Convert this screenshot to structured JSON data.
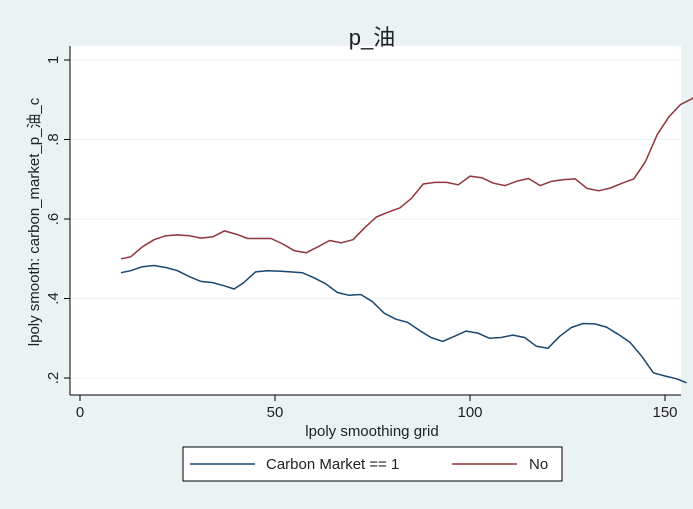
{
  "chart_data": {
    "type": "line",
    "title": "p_油",
    "xlabel": "lpoly smoothing grid",
    "ylabel": "lpoly smooth: carbon_market_p_油_c",
    "xlim": [
      0,
      150
    ],
    "ylim": [
      0.2,
      1.0
    ],
    "x_ticks": [
      0,
      50,
      100,
      150
    ],
    "x_tick_labels": [
      "0",
      "50",
      "100",
      "150"
    ],
    "y_ticks": [
      0.2,
      0.4,
      0.6,
      0.8,
      1.0
    ],
    "y_tick_labels": [
      ".2",
      ".4",
      ".6",
      ".8",
      "1"
    ],
    "grid": true,
    "legend_position": "bottom",
    "series": [
      {
        "name": "Carbon Market == 1",
        "color": "#1a476f",
        "points": [
          [
            10.5,
            0.465
          ],
          [
            13,
            0.47
          ],
          [
            16,
            0.48
          ],
          [
            19,
            0.483
          ],
          [
            22,
            0.478
          ],
          [
            25,
            0.47
          ],
          [
            28,
            0.455
          ],
          [
            31,
            0.443
          ],
          [
            34,
            0.44
          ],
          [
            37,
            0.432
          ],
          [
            39.5,
            0.424
          ],
          [
            42,
            0.44
          ],
          [
            45,
            0.467
          ],
          [
            48,
            0.47
          ],
          [
            51,
            0.469
          ],
          [
            54,
            0.467
          ],
          [
            57,
            0.465
          ],
          [
            60,
            0.452
          ],
          [
            63,
            0.437
          ],
          [
            66,
            0.415
          ],
          [
            69,
            0.408
          ],
          [
            72,
            0.41
          ],
          [
            75,
            0.392
          ],
          [
            78,
            0.363
          ],
          [
            81,
            0.348
          ],
          [
            84,
            0.34
          ],
          [
            87,
            0.32
          ],
          [
            90,
            0.302
          ],
          [
            93,
            0.292
          ],
          [
            96,
            0.305
          ],
          [
            99,
            0.318
          ],
          [
            102,
            0.313
          ],
          [
            105,
            0.3
          ],
          [
            108,
            0.302
          ],
          [
            111,
            0.308
          ],
          [
            114,
            0.302
          ],
          [
            117,
            0.28
          ],
          [
            120,
            0.275
          ],
          [
            123,
            0.305
          ],
          [
            126,
            0.327
          ],
          [
            129,
            0.337
          ],
          [
            132,
            0.336
          ],
          [
            135,
            0.328
          ],
          [
            138,
            0.31
          ],
          [
            141,
            0.29
          ],
          [
            144,
            0.255
          ],
          [
            147,
            0.213
          ],
          [
            150,
            0.205
          ],
          [
            153,
            0.198
          ],
          [
            155.5,
            0.188
          ]
        ]
      },
      {
        "name": "No",
        "color": "#90353b",
        "points": [
          [
            10.5,
            0.5
          ],
          [
            13,
            0.505
          ],
          [
            16,
            0.53
          ],
          [
            19,
            0.548
          ],
          [
            22,
            0.558
          ],
          [
            25,
            0.56
          ],
          [
            28,
            0.558
          ],
          [
            31,
            0.552
          ],
          [
            34,
            0.555
          ],
          [
            37,
            0.57
          ],
          [
            40,
            0.562
          ],
          [
            43,
            0.551
          ],
          [
            46,
            0.551
          ],
          [
            49,
            0.551
          ],
          [
            52,
            0.537
          ],
          [
            55,
            0.52
          ],
          [
            58,
            0.515
          ],
          [
            61,
            0.53
          ],
          [
            64,
            0.546
          ],
          [
            67,
            0.54
          ],
          [
            70,
            0.548
          ],
          [
            73,
            0.578
          ],
          [
            76,
            0.605
          ],
          [
            79,
            0.617
          ],
          [
            82,
            0.628
          ],
          [
            85,
            0.652
          ],
          [
            88,
            0.688
          ],
          [
            91,
            0.692
          ],
          [
            94,
            0.692
          ],
          [
            97,
            0.686
          ],
          [
            100,
            0.708
          ],
          [
            103,
            0.704
          ],
          [
            106,
            0.69
          ],
          [
            109,
            0.684
          ],
          [
            112,
            0.695
          ],
          [
            115,
            0.702
          ],
          [
            118,
            0.684
          ],
          [
            121,
            0.695
          ],
          [
            124,
            0.699
          ],
          [
            127,
            0.701
          ],
          [
            130,
            0.677
          ],
          [
            133,
            0.671
          ],
          [
            136,
            0.678
          ],
          [
            139,
            0.69
          ],
          [
            142,
            0.701
          ],
          [
            145,
            0.745
          ],
          [
            148,
            0.812
          ],
          [
            151,
            0.857
          ],
          [
            154,
            0.888
          ],
          [
            157,
            0.903
          ],
          [
            160,
            0.933
          ]
        ]
      }
    ]
  }
}
